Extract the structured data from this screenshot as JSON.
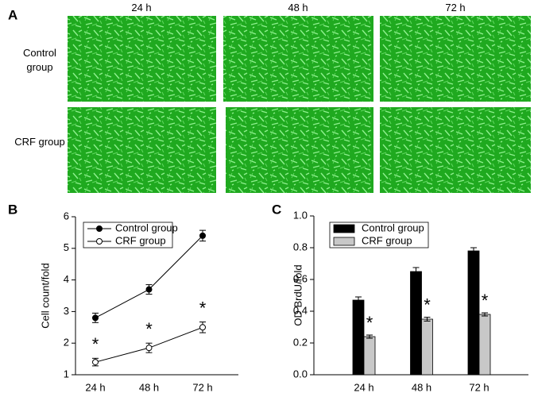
{
  "panel_a": {
    "label": "A",
    "columns": [
      "24 h",
      "48 h",
      "72 h"
    ],
    "rows": [
      "Control group",
      "CRF group"
    ]
  },
  "chart_data": [
    {
      "type": "line",
      "panel_label": "B",
      "y_label": "Cell count/fold",
      "categories": [
        "24 h",
        "48 h",
        "72 h"
      ],
      "ylim": [
        1,
        6
      ],
      "yticks": [
        1,
        2,
        3,
        4,
        5,
        6
      ],
      "legend": "upper-left",
      "series": [
        {
          "name": "Control group",
          "color": "#000000",
          "marker_fill": "#000000",
          "values": [
            2.8,
            3.7,
            5.4
          ],
          "errors": [
            0.15,
            0.15,
            0.17
          ]
        },
        {
          "name": "CRF group",
          "color": "#000000",
          "marker_fill": "#ffffff",
          "values": [
            1.4,
            1.85,
            2.5
          ],
          "errors": [
            0.12,
            0.15,
            0.17
          ],
          "significance": [
            "*",
            "*",
            "*"
          ]
        }
      ]
    },
    {
      "type": "bar",
      "panel_label": "C",
      "y_label": "OD BrdU/fold",
      "categories": [
        "24 h",
        "48 h",
        "72 h"
      ],
      "ylim": [
        0,
        1
      ],
      "yticks": [
        {
          "value": 0,
          "label": "0.0"
        },
        0.2,
        0.4,
        0.6,
        0.8,
        {
          "value": 1,
          "label": "1.0"
        }
      ],
      "legend": "upper-left",
      "series": [
        {
          "name": "Control group",
          "color": "#000000",
          "values": [
            0.47,
            0.65,
            0.78
          ],
          "errors": [
            0.02,
            0.025,
            0.02
          ]
        },
        {
          "name": "CRF group",
          "color": "#c8c8c8",
          "values": [
            0.24,
            0.35,
            0.38
          ],
          "errors": [
            0.01,
            0.012,
            0.01
          ],
          "significance": [
            "*",
            "*",
            "*"
          ]
        }
      ]
    }
  ]
}
